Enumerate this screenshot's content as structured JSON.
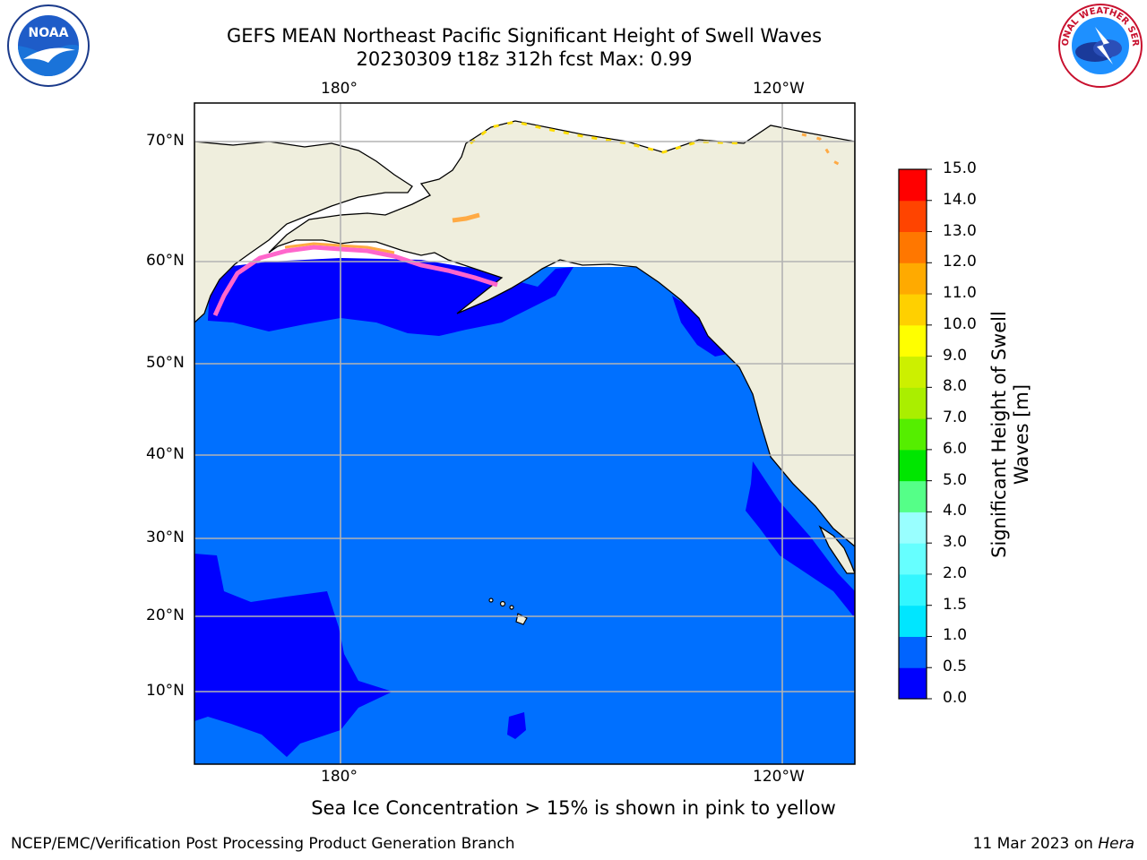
{
  "title": {
    "line1": "GEFS MEAN Northeast Pacific Significant Height of Swell Waves",
    "line2": "20230309 t18z 312h fcst   Max: 0.99"
  },
  "axes": {
    "lon_top": [
      "180°",
      "120°W"
    ],
    "lon_bottom": [
      "180°",
      "120°W"
    ],
    "lat": [
      "70°N",
      "60°N",
      "50°N",
      "40°N",
      "30°N",
      "20°N",
      "10°N"
    ]
  },
  "colorbar": {
    "label_line1": "Significant Height of Swell",
    "label_line2": "Waves [m]",
    "ticks": [
      "0.0",
      "0.5",
      "1.0",
      "1.5",
      "2.0",
      "3.0",
      "4.0",
      "5.0",
      "6.0",
      "7.0",
      "8.0",
      "9.0",
      "10.0",
      "11.0",
      "12.0",
      "13.0",
      "14.0",
      "15.0"
    ],
    "colors": [
      "#0000ff",
      "#0064ff",
      "#00e6ff",
      "#33f6ff",
      "#66ffff",
      "#99ffff",
      "#55ff88",
      "#00e600",
      "#55ee00",
      "#aaee00",
      "#ccf000",
      "#ffff00",
      "#ffd000",
      "#ffaa00",
      "#ff7700",
      "#ff4400",
      "#ff0000"
    ]
  },
  "map_colors": {
    "land": "#efeedd",
    "ocean_0_5_1_0": "#0070ff",
    "ocean_0_0_0_5": "#0000ff",
    "grid": "#b3b3b3",
    "sea_ice_pink": "#ff66cc",
    "sea_ice_orange": "#ffaa44",
    "sea_ice_yellow": "#ffdd00"
  },
  "note": "Sea Ice Concentration > 15% is shown in pink to yellow",
  "footer": {
    "left": "NCEP/EMC/Verification Post Processing Product Generation Branch",
    "right_date": "11 Mar 2023 on ",
    "right_host": "Hera"
  },
  "logos": {
    "noaa_text": "NOAA",
    "nws_text": "NATIONAL WEATHER SERVICE"
  }
}
